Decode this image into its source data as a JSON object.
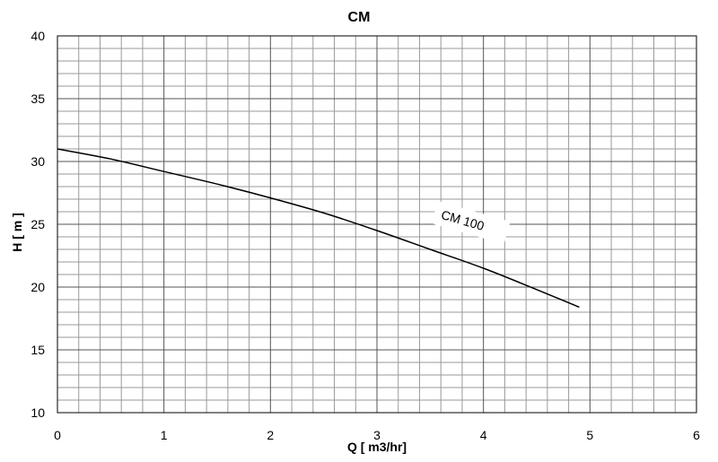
{
  "chart_data": {
    "type": "line",
    "title": "CM",
    "xlabel": "Q [ m3/hr]",
    "ylabel": "H [ m ]",
    "xlim": [
      0,
      6
    ],
    "ylim": [
      10,
      40
    ],
    "x_ticks": [
      "0",
      "1",
      "2",
      "3",
      "4",
      "5",
      "6"
    ],
    "y_ticks": [
      "10",
      "15",
      "20",
      "25",
      "30",
      "35",
      "40"
    ],
    "grid": true,
    "minor_grid": true,
    "series": [
      {
        "name": "CM 100",
        "color": "#000000",
        "x": [
          0,
          0.5,
          1,
          1.5,
          2,
          2.5,
          3,
          3.5,
          4,
          4.5,
          4.9
        ],
        "y": [
          31.0,
          30.2,
          29.2,
          28.2,
          27.1,
          25.9,
          24.5,
          23.0,
          21.5,
          19.8,
          18.4
        ]
      }
    ]
  }
}
